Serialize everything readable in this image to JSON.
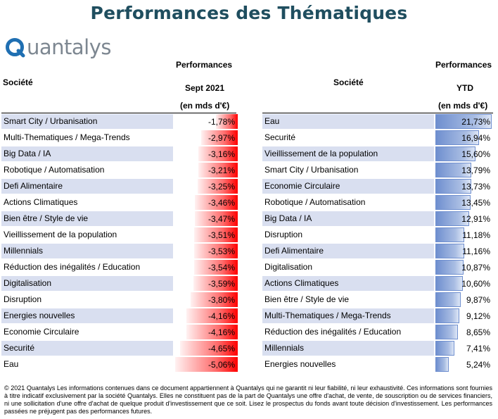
{
  "title": "Performances des Thématiques",
  "logo": {
    "text": "uantalys"
  },
  "left": {
    "col_societe": "Société",
    "col_perf": "Performances",
    "col_period": "Sept 2021",
    "col_unit": "(en mds d'€)",
    "rows": [
      {
        "name": "Smart City / Urbanisation",
        "value": "-1,78%"
      },
      {
        "name": "Multi-Thematiques / Mega-Trends",
        "value": "-2,97%"
      },
      {
        "name": "Big Data / IA",
        "value": "-3,16%"
      },
      {
        "name": "Robotique / Automatisation",
        "value": "-3,21%"
      },
      {
        "name": "Defi Alimentaire",
        "value": "-3,25%"
      },
      {
        "name": "Actions Climatiques",
        "value": "-3,46%"
      },
      {
        "name": "Bien être / Style de vie",
        "value": "-3,47%"
      },
      {
        "name": "Vieillissement de la population",
        "value": "-3,51%"
      },
      {
        "name": "Millennials",
        "value": "-3,53%"
      },
      {
        "name": "Réduction des inégalités / Education",
        "value": "-3,54%"
      },
      {
        "name": "Digitalisation",
        "value": "-3,59%"
      },
      {
        "name": "Disruption",
        "value": "-3,80%"
      },
      {
        "name": "Energies nouvelles",
        "value": "-4,16%"
      },
      {
        "name": "Economie Circulaire",
        "value": "-4,16%"
      },
      {
        "name": "Securité",
        "value": "-4,65%"
      },
      {
        "name": "Eau",
        "value": "-5,06%"
      }
    ]
  },
  "right": {
    "col_societe": "Société",
    "col_perf": "Performances",
    "col_period": "YTD",
    "col_unit": "(en mds d'€)",
    "rows": [
      {
        "name": "Eau",
        "value": "21,73%"
      },
      {
        "name": "Securité",
        "value": "16,94%"
      },
      {
        "name": "Vieillissement de la population",
        "value": "15,60%"
      },
      {
        "name": "Smart City / Urbanisation",
        "value": "13,79%"
      },
      {
        "name": "Economie Circulaire",
        "value": "13,73%"
      },
      {
        "name": "Robotique / Automatisation",
        "value": "13,45%"
      },
      {
        "name": "Big Data / IA",
        "value": "12,91%"
      },
      {
        "name": "Disruption",
        "value": "11,18%"
      },
      {
        "name": "Defi Alimentaire",
        "value": "11,16%"
      },
      {
        "name": "Digitalisation",
        "value": "10,87%"
      },
      {
        "name": "Actions Climatiques",
        "value": "10,60%"
      },
      {
        "name": "Bien être / Style de vie",
        "value": "9,87%"
      },
      {
        "name": "Multi-Thematiques / Mega-Trends",
        "value": "9,12%"
      },
      {
        "name": "Réduction des inégalités / Education",
        "value": "8,65%"
      },
      {
        "name": "Millennials",
        "value": "7,41%"
      },
      {
        "name": "Energies nouvelles",
        "value": "5,24%"
      }
    ]
  },
  "colors": {
    "title": "#1f4e5f",
    "logo_blue": "#1f6fb2",
    "logo_grey": "#7d8791",
    "row_shade": "#d9dff0",
    "neg_bar": "#ff0000",
    "pos_bar": "#6f8fcf"
  },
  "footnote": "© 2021 Quantalys Les informations contenues dans ce document appartiennent à Quantalys qui ne garantit ni leur fiabilité, ni leur exhaustivité. Ces informations sont fournies à titre indicatif exclusivement par la société Quantalys. Elles ne constituent pas de la part de Quantalys une offre d'achat, de vente, de souscription ou de services financiers, ni une sollicitation d'une offre d'achat de quelque produit d'investissement que ce soit. Lisez le prospectus du fonds avant toute décision d'investissement. Les performances passées ne préjugent pas des performances futures."
}
